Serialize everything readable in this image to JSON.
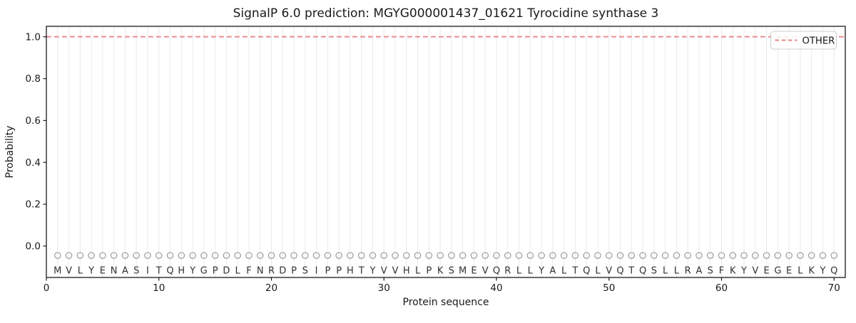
{
  "figure": {
    "title": "SignalP 6.0 prediction: MGYG000001437_01621 Tyrocidine synthase 3",
    "xlabel": "Protein sequence",
    "ylabel": "Probability"
  },
  "chart_data": {
    "type": "line",
    "title": "SignalP 6.0 prediction: MGYG000001437_01621 Tyrocidine synthase 3",
    "xlabel": "Protein sequence",
    "ylabel": "Probability",
    "xlim": [
      0,
      71
    ],
    "ylim": [
      -0.15,
      1.05
    ],
    "xticks": [
      0,
      10,
      20,
      30,
      40,
      50,
      60,
      70
    ],
    "yticks": [
      0.0,
      0.2,
      0.4,
      0.6,
      0.8,
      1.0
    ],
    "grid": {
      "vertical_per_residue": true,
      "horizontal": false
    },
    "legend": {
      "position": "upper right",
      "entries": [
        {
          "label": "OTHER",
          "color": "#e98585",
          "linestyle": "dashed"
        }
      ]
    },
    "series": [
      {
        "name": "OTHER",
        "linestyle": "dashed",
        "color": "#e98585",
        "x": [
          1,
          2,
          3,
          4,
          5,
          6,
          7,
          8,
          9,
          10,
          11,
          12,
          13,
          14,
          15,
          16,
          17,
          18,
          19,
          20,
          21,
          22,
          23,
          24,
          25,
          26,
          27,
          28,
          29,
          30,
          31,
          32,
          33,
          34,
          35,
          36,
          37,
          38,
          39,
          40,
          41,
          42,
          43,
          44,
          45,
          46,
          47,
          48,
          49,
          50,
          51,
          52,
          53,
          54,
          55,
          56,
          57,
          58,
          59,
          60,
          61,
          62,
          63,
          64,
          65,
          66,
          67,
          68,
          69,
          70
        ],
        "values": [
          1,
          1,
          1,
          1,
          1,
          1,
          1,
          1,
          1,
          1,
          1,
          1,
          1,
          1,
          1,
          1,
          1,
          1,
          1,
          1,
          1,
          1,
          1,
          1,
          1,
          1,
          1,
          1,
          1,
          1,
          1,
          1,
          1,
          1,
          1,
          1,
          1,
          1,
          1,
          1,
          1,
          1,
          1,
          1,
          1,
          1,
          1,
          1,
          1,
          1,
          1,
          1,
          1,
          1,
          1,
          1,
          1,
          1,
          1,
          1,
          1,
          1,
          1,
          1,
          1,
          1,
          1,
          1,
          1,
          1
        ]
      }
    ],
    "sequence": "MVLYENASITQHYGPDLFNRDPSIPPHTYVVHLPKSMEVQRLLYALTQLVQTQSLLRASFKYVEGELKYQ",
    "sequence_markers": {
      "glyph": "open-circle",
      "y": -0.045,
      "color": "#999999"
    },
    "sequence_letters_y": -0.115
  },
  "colors": {
    "background": "#ffffff",
    "spine": "#1a1a1a",
    "grid": "#ebebeb",
    "marker": "#999999",
    "letter": "#333333",
    "other_line": "#e98585",
    "legend_border": "#cccccc",
    "legend_bg": "#ffffff"
  }
}
